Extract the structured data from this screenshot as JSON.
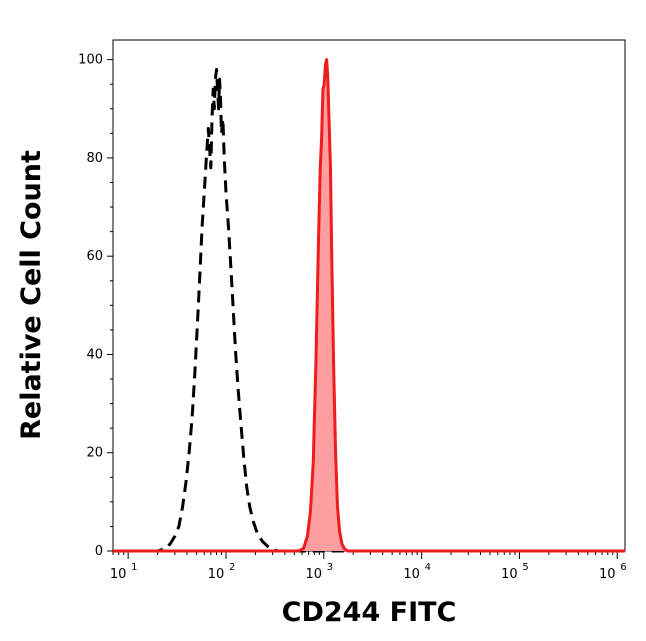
{
  "chart_data": {
    "type": "area",
    "xlabel": "CD244 FITC",
    "ylabel": "Relative Cell Count",
    "xscale": "log",
    "xlim": [
      7,
      1200000
    ],
    "ylim": [
      0,
      104
    ],
    "grid": false,
    "legend": "none",
    "y_ticks": [
      0,
      20,
      40,
      60,
      80,
      100
    ],
    "x_ticks": [
      {
        "base": "10",
        "exp": "1",
        "value": 10
      },
      {
        "base": "10",
        "exp": "2",
        "value": 100
      },
      {
        "base": "10",
        "exp": "3",
        "value": 1000
      },
      {
        "base": "10",
        "exp": "4",
        "value": 10000
      },
      {
        "base": "10",
        "exp": "5",
        "value": 100000
      },
      {
        "base": "10",
        "exp": "6",
        "value": 1000000
      }
    ],
    "series": [
      {
        "style": "dashed",
        "color": "#000000",
        "fill": "none",
        "points": [
          [
            7,
            0
          ],
          [
            20,
            0
          ],
          [
            24,
            0.5
          ],
          [
            27,
            1.5
          ],
          [
            30,
            3
          ],
          [
            33,
            5
          ],
          [
            36,
            9
          ],
          [
            39,
            14
          ],
          [
            42,
            20
          ],
          [
            45,
            27
          ],
          [
            48,
            36
          ],
          [
            51,
            46
          ],
          [
            54,
            56
          ],
          [
            57,
            66
          ],
          [
            60,
            73
          ],
          [
            63,
            80
          ],
          [
            66,
            86
          ],
          [
            68,
            82
          ],
          [
            70,
            78
          ],
          [
            72,
            88
          ],
          [
            74,
            94
          ],
          [
            76,
            90
          ],
          [
            78,
            96
          ],
          [
            80,
            98
          ],
          [
            82,
            94
          ],
          [
            84,
            90
          ],
          [
            86,
            96
          ],
          [
            88,
            92
          ],
          [
            90,
            85
          ],
          [
            93,
            88
          ],
          [
            96,
            80
          ],
          [
            100,
            73
          ],
          [
            106,
            66
          ],
          [
            112,
            58
          ],
          [
            118,
            50
          ],
          [
            125,
            41
          ],
          [
            133,
            33
          ],
          [
            142,
            26
          ],
          [
            152,
            19
          ],
          [
            163,
            13
          ],
          [
            175,
            9
          ],
          [
            190,
            6
          ],
          [
            210,
            3.5
          ],
          [
            235,
            2
          ],
          [
            265,
            1
          ],
          [
            300,
            0.3
          ],
          [
            340,
            0
          ],
          [
            1200000,
            0
          ]
        ]
      },
      {
        "style": "solid",
        "color": "#ee1c1c",
        "fill": "#ff9ea0",
        "points": [
          [
            7,
            0
          ],
          [
            550,
            0
          ],
          [
            620,
            0.5
          ],
          [
            680,
            3
          ],
          [
            730,
            8
          ],
          [
            780,
            18
          ],
          [
            830,
            38
          ],
          [
            880,
            62
          ],
          [
            920,
            78
          ],
          [
            950,
            84
          ],
          [
            980,
            94
          ],
          [
            1010,
            95
          ],
          [
            1040,
            99
          ],
          [
            1070,
            100
          ],
          [
            1100,
            96
          ],
          [
            1130,
            88
          ],
          [
            1170,
            78
          ],
          [
            1210,
            58
          ],
          [
            1260,
            38
          ],
          [
            1320,
            20
          ],
          [
            1380,
            9
          ],
          [
            1450,
            4
          ],
          [
            1530,
            1.5
          ],
          [
            1620,
            0.5
          ],
          [
            1750,
            0
          ],
          [
            1200000,
            0
          ]
        ]
      }
    ]
  }
}
